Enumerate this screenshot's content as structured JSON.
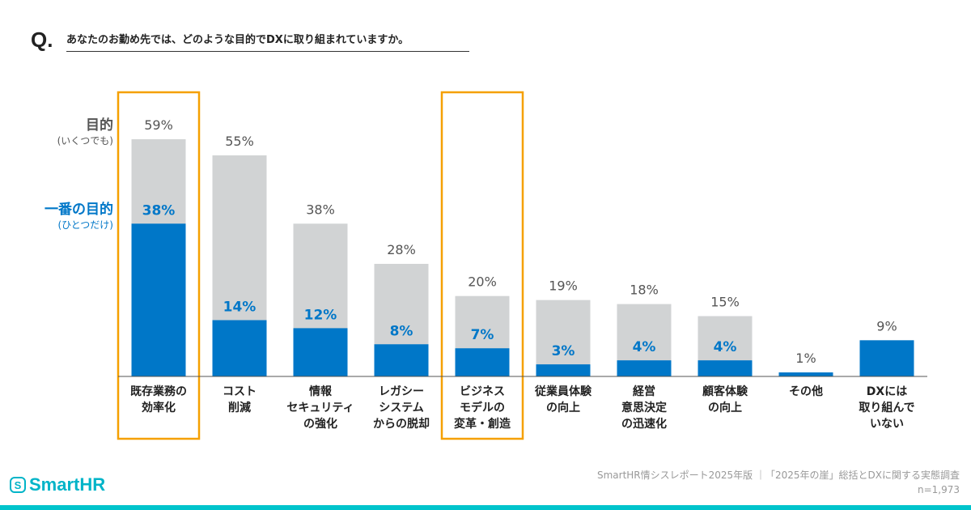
{
  "question_mark": "Q.",
  "question": "あなたのお勤め先では、どのような目的でDXに取り組まれていますか。",
  "legend": {
    "all": "目的",
    "all_sub": "(いくつでも)",
    "top": "一番の目的",
    "top_sub": "(ひとつだけ)"
  },
  "colors": {
    "all": "#d1d3d4",
    "top": "#0077c8",
    "highlight": "#f5a000",
    "brand": "#00b4c8"
  },
  "chart_data": {
    "type": "bar",
    "categories": [
      [
        "既存業務の",
        "効率化"
      ],
      [
        "コスト",
        "削減"
      ],
      [
        "情報",
        "セキュリティ",
        "の強化"
      ],
      [
        "レガシー",
        "システム",
        "からの脱却"
      ],
      [
        "ビジネス",
        "モデルの",
        "変革・創造"
      ],
      [
        "従業員体験",
        "の向上"
      ],
      [
        "経営",
        "意思決定",
        "の迅速化"
      ],
      [
        "顧客体験",
        "の向上"
      ],
      [
        "その他"
      ],
      [
        "DXには",
        "取り組んで",
        "いない"
      ]
    ],
    "series": [
      {
        "name": "目的(いくつでも)",
        "values": [
          59,
          55,
          38,
          28,
          20,
          19,
          18,
          15,
          1,
          9
        ]
      },
      {
        "name": "一番の目的(ひとつだけ)",
        "values": [
          38,
          14,
          12,
          8,
          7,
          3,
          4,
          4,
          null,
          9
        ]
      }
    ],
    "labels_all": [
      "59%",
      "55%",
      "38%",
      "28%",
      "20%",
      "19%",
      "18%",
      "15%",
      "1%",
      "9%"
    ],
    "labels_top": [
      "38%",
      "14%",
      "12%",
      "8%",
      "7%",
      "3%",
      "4%",
      "4%",
      "",
      ""
    ],
    "highlighted": [
      0,
      4
    ],
    "ylim": [
      0,
      60
    ]
  },
  "footer": {
    "source": "SmartHR情シスレポート2025年版 ｜「2025年の崖」総括とDXに関する実態調査",
    "n": "n=1,973"
  },
  "logo": {
    "text": "SmartHR",
    "mark": "S"
  }
}
